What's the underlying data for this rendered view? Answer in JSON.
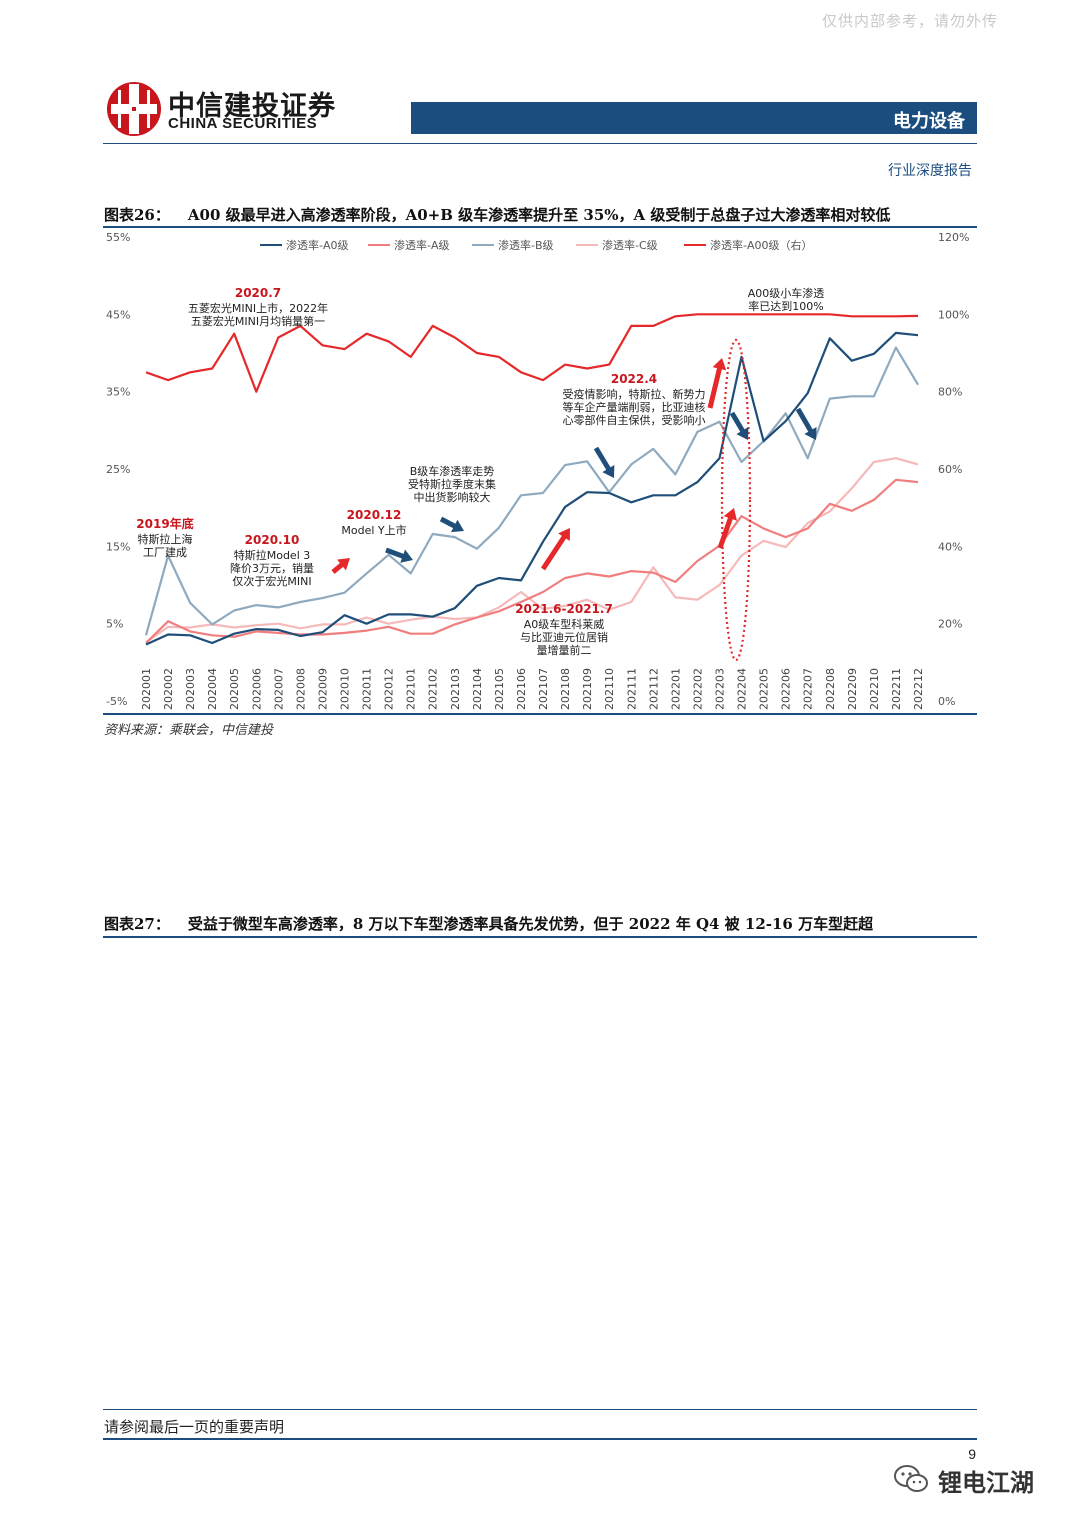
{
  "header": {
    "watermark": "仅供内部参考，请勿外传",
    "company_cn": "中信建投证券",
    "company_en": "CHINA SECURITIES",
    "sector": "电力设备",
    "report_type": "行业深度报告"
  },
  "figure26": {
    "title_num": "图表26：",
    "title": "A00 级最早进入高渗透率阶段，A0+B 级车渗透率提升至 35%，A 级受制于总盘子过大渗透率相对较低",
    "source": "资料来源：乘联会，中信建投"
  },
  "figure27": {
    "title_num": "图表27：",
    "title": "受益于微型车高渗透率，8 万以下车型渗透率具备先发优势，但于 2022 年 Q4 被 12-16 万车型赶超"
  },
  "chart_data": {
    "type": "line",
    "categories": [
      "202001",
      "202002",
      "202003",
      "202004",
      "202005",
      "202006",
      "202007",
      "202008",
      "202009",
      "202010",
      "202011",
      "202012",
      "202101",
      "202102",
      "202103",
      "202104",
      "202105",
      "202106",
      "202107",
      "202108",
      "202109",
      "202110",
      "202111",
      "202112",
      "202201",
      "202202",
      "202203",
      "202204",
      "202205",
      "202206",
      "202207",
      "202208",
      "202209",
      "202210",
      "202211",
      "202212"
    ],
    "y_left": {
      "ticks": [
        "55%",
        "45%",
        "35%",
        "25%",
        "15%",
        "5%",
        "-5%"
      ],
      "ylim": [
        -5,
        55
      ]
    },
    "y_right": {
      "ticks": [
        "120%",
        "100%",
        "80%",
        "60%",
        "40%",
        "20%",
        "0%"
      ],
      "ylim": [
        0,
        120
      ]
    },
    "legend": {
      "position": "top"
    },
    "series": [
      {
        "name": "渗透率-A0级",
        "axis": "left",
        "color": "#1f4e79",
        "values": [
          2.3,
          3.6,
          3.5,
          2.5,
          3.7,
          4.3,
          4.2,
          3.4,
          3.9,
          6.1,
          5.0,
          6.2,
          6.2,
          5.9,
          7.0,
          9.9,
          10.9,
          10.6,
          15.6,
          20.1,
          22.0,
          21.9,
          20.7,
          21.6,
          21.6,
          23.3,
          26.4,
          39.5,
          28.6,
          31.2,
          34.8,
          41.9,
          39.0,
          39.9,
          42.6,
          42.3
        ]
      },
      {
        "name": "渗透率-A级",
        "axis": "left",
        "color": "#f07e7e",
        "values": [
          2.5,
          5.3,
          4.0,
          3.5,
          3.3,
          4.0,
          3.8,
          3.6,
          3.6,
          3.8,
          4.1,
          4.6,
          3.7,
          3.7,
          4.9,
          5.8,
          6.6,
          7.8,
          9.1,
          10.9,
          11.5,
          11.1,
          11.8,
          11.6,
          10.4,
          13.1,
          15.1,
          18.9,
          17.3,
          16.2,
          17.3,
          20.5,
          19.6,
          21.0,
          23.6,
          23.3
        ]
      },
      {
        "name": "渗透率-B级",
        "axis": "left",
        "color": "#8faabf",
        "values": [
          3.5,
          13.8,
          7.7,
          4.9,
          6.7,
          7.4,
          7.1,
          7.8,
          8.3,
          9.0,
          11.5,
          13.9,
          11.5,
          16.6,
          16.2,
          14.7,
          17.4,
          21.6,
          21.9,
          25.5,
          26.0,
          22.0,
          25.6,
          27.6,
          24.3,
          29.8,
          31.1,
          25.9,
          28.6,
          32.2,
          26.4,
          34.1,
          34.4,
          34.4,
          40.7,
          35.9
        ]
      },
      {
        "name": "渗透率-C级",
        "axis": "left",
        "color": "#f6b9b9",
        "values": [
          2.6,
          4.6,
          4.5,
          4.9,
          4.5,
          4.8,
          5.0,
          4.4,
          4.9,
          4.9,
          5.8,
          5.0,
          5.5,
          5.9,
          5.6,
          5.8,
          7.1,
          9.1,
          6.9,
          7.3,
          8.1,
          6.8,
          7.8,
          12.3,
          8.4,
          8.1,
          10.0,
          13.8,
          15.7,
          14.9,
          18.0,
          19.5,
          22.5,
          25.9,
          26.4,
          25.6
        ]
      },
      {
        "name": "渗透率-A00级（右）",
        "axis": "right",
        "color": "#e5282a",
        "values": [
          85,
          83,
          85,
          86,
          95,
          80,
          94,
          97,
          92,
          91,
          95,
          93,
          89,
          97,
          94,
          90,
          89,
          85,
          83,
          87,
          86,
          87,
          97,
          97,
          99.5,
          100,
          100,
          100,
          100,
          100,
          100,
          100,
          99.5,
          99.5,
          99.5,
          99.6
        ]
      }
    ],
    "annotations": [
      {
        "title": "2019年底",
        "lines": [
          "特斯拉上海",
          "工厂建成"
        ]
      },
      {
        "title": "2020.7",
        "lines": [
          "五菱宏光MINI上市，2022年",
          "五菱宏光MINI月均销量第一"
        ]
      },
      {
        "title": "2020.10",
        "lines": [
          "特斯拉Model 3",
          "降价3万元，销量",
          "仅次于宏光MINI"
        ]
      },
      {
        "title": "2020.12",
        "lines": [
          "Model Y上市"
        ]
      },
      {
        "title": "",
        "lines": [
          "B级车渗透率走势",
          "受特斯拉季度末集",
          "中出货影响较大"
        ]
      },
      {
        "title": "2021.6-2021.7",
        "lines": [
          "A0级车型科莱威",
          "与比亚迪元位居销",
          "量增量前二"
        ]
      },
      {
        "title": "2022.4",
        "lines": [
          "受疫情影响，特斯拉、新势力",
          "等车企产量端削弱，比亚迪核",
          "心零部件自主保供，受影响小"
        ]
      },
      {
        "title": "",
        "lines": [
          "A00级小车渗透",
          "率已达到100%"
        ]
      }
    ]
  },
  "footer": {
    "disclaimer": "请参阅最后一页的重要声明",
    "page": "9",
    "wechat_name": "锂电江湖"
  }
}
